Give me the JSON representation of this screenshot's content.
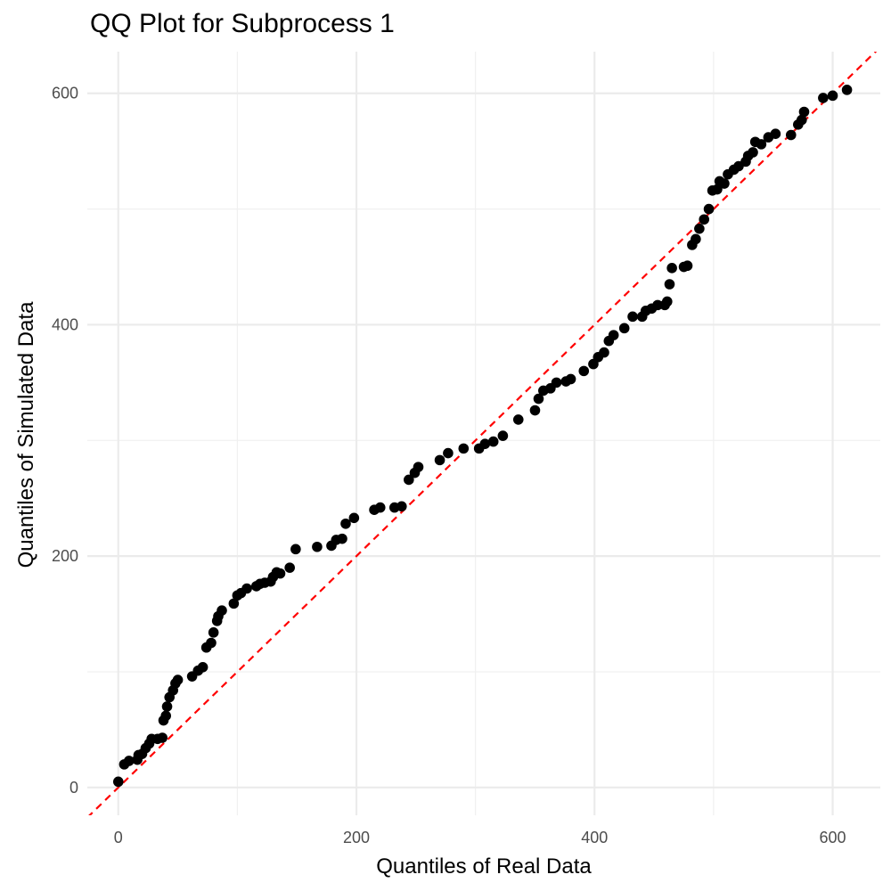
{
  "chart_data": {
    "type": "scatter",
    "title": "QQ Plot for Subprocess 1",
    "xlabel": "Quantiles of Real Data",
    "ylabel": "Quantiles of Simulated Data",
    "xlim": [
      -26,
      640
    ],
    "ylim": [
      -24,
      636
    ],
    "x_ticks": [
      0,
      200,
      400,
      600
    ],
    "y_ticks": [
      0,
      200,
      400,
      600
    ],
    "grid": true,
    "reference_line": {
      "slope": 1,
      "intercept": 0,
      "style": "dashed",
      "color": "#ff0000"
    },
    "point_color": "#000000",
    "points": [
      [
        0,
        5
      ],
      [
        5,
        20
      ],
      [
        9,
        23
      ],
      [
        16,
        24
      ],
      [
        17,
        28
      ],
      [
        20,
        29
      ],
      [
        23,
        34
      ],
      [
        26,
        38
      ],
      [
        28,
        42
      ],
      [
        33,
        42
      ],
      [
        37,
        43
      ],
      [
        38,
        58
      ],
      [
        40,
        62
      ],
      [
        41,
        70
      ],
      [
        43,
        78
      ],
      [
        46,
        84
      ],
      [
        48,
        90
      ],
      [
        50,
        93
      ],
      [
        62,
        96
      ],
      [
        67,
        101
      ],
      [
        71,
        104
      ],
      [
        74,
        121
      ],
      [
        78,
        125
      ],
      [
        80,
        134
      ],
      [
        83,
        144
      ],
      [
        84,
        148
      ],
      [
        87,
        153
      ],
      [
        97,
        159
      ],
      [
        100,
        166
      ],
      [
        103,
        168
      ],
      [
        108,
        172
      ],
      [
        116,
        174
      ],
      [
        119,
        176
      ],
      [
        123,
        177
      ],
      [
        128,
        178
      ],
      [
        130,
        182
      ],
      [
        133,
        186
      ],
      [
        136,
        185
      ],
      [
        144,
        190
      ],
      [
        149,
        206
      ],
      [
        167,
        208
      ],
      [
        179,
        209
      ],
      [
        183,
        214
      ],
      [
        188,
        215
      ],
      [
        191,
        228
      ],
      [
        198,
        233
      ],
      [
        215,
        240
      ],
      [
        220,
        242
      ],
      [
        232,
        242
      ],
      [
        238,
        243
      ],
      [
        244,
        266
      ],
      [
        249,
        272
      ],
      [
        252,
        277
      ],
      [
        270,
        283
      ],
      [
        277,
        289
      ],
      [
        290,
        293
      ],
      [
        303,
        293
      ],
      [
        308,
        297
      ],
      [
        315,
        299
      ],
      [
        323,
        304
      ],
      [
        336,
        318
      ],
      [
        350,
        326
      ],
      [
        353,
        336
      ],
      [
        357,
        343
      ],
      [
        363,
        345
      ],
      [
        368,
        350
      ],
      [
        376,
        351
      ],
      [
        380,
        353
      ],
      [
        391,
        360
      ],
      [
        399,
        366
      ],
      [
        403,
        372
      ],
      [
        408,
        376
      ],
      [
        412,
        386
      ],
      [
        416,
        391
      ],
      [
        425,
        397
      ],
      [
        432,
        407
      ],
      [
        440,
        407
      ],
      [
        443,
        412
      ],
      [
        448,
        414
      ],
      [
        453,
        417
      ],
      [
        459,
        417
      ],
      [
        461,
        420
      ],
      [
        463,
        435
      ],
      [
        465,
        449
      ],
      [
        475,
        450
      ],
      [
        478,
        451
      ],
      [
        482,
        469
      ],
      [
        485,
        474
      ],
      [
        488,
        483
      ],
      [
        492,
        491
      ],
      [
        496,
        500
      ],
      [
        499,
        516
      ],
      [
        503,
        517
      ],
      [
        505,
        524
      ],
      [
        509,
        522
      ],
      [
        512,
        530
      ],
      [
        517,
        534
      ],
      [
        521,
        537
      ],
      [
        527,
        541
      ],
      [
        529,
        546
      ],
      [
        533,
        549
      ],
      [
        535,
        558
      ],
      [
        540,
        556
      ],
      [
        546,
        562
      ],
      [
        552,
        565
      ],
      [
        565,
        564
      ],
      [
        571,
        573
      ],
      [
        574,
        577
      ],
      [
        576,
        584
      ],
      [
        592,
        596
      ],
      [
        600,
        598
      ],
      [
        612,
        603
      ]
    ]
  }
}
